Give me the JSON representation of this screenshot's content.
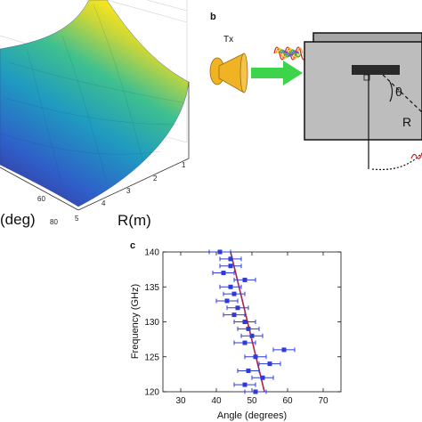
{
  "panels": {
    "a": {
      "axis_label_left": "(deg)",
      "axis_label_right": "R(m)",
      "left_ticks": [
        "60",
        "80"
      ],
      "right_ticks": [
        "1",
        "2",
        "3",
        "4",
        "5"
      ]
    },
    "b": {
      "letter": "b",
      "tx_label": "Tx",
      "theta_label": "θ",
      "r_label": "R",
      "colors": {
        "horn": "#f0b323",
        "arrow": "#3dd34a",
        "box_back": "#a6a6a6",
        "box_front": "#bdbdbd"
      }
    },
    "c": {
      "letter": "c"
    }
  },
  "chart_data": {
    "type": "scatter",
    "title": "",
    "xlabel": "Angle (degrees)",
    "ylabel": "Frequency (GHz)",
    "xlim": [
      25,
      75
    ],
    "ylim": [
      120,
      140
    ],
    "xticks": [
      30,
      40,
      50,
      60,
      70
    ],
    "yticks": [
      120,
      125,
      130,
      135,
      140
    ],
    "grid": false,
    "series": [
      {
        "marker": "square",
        "color": "#2f3bd6",
        "points": [
          {
            "y": 140,
            "x": 41,
            "err": 3
          },
          {
            "y": 139,
            "x": 44,
            "err": 3
          },
          {
            "y": 138,
            "x": 44,
            "err": 3
          },
          {
            "y": 137,
            "x": 42,
            "err": 3
          },
          {
            "y": 136,
            "x": 48,
            "err": 3
          },
          {
            "y": 135,
            "x": 44,
            "err": 3
          },
          {
            "y": 134,
            "x": 45,
            "err": 3
          },
          {
            "y": 133,
            "x": 43,
            "err": 3
          },
          {
            "y": 132,
            "x": 46,
            "err": 3
          },
          {
            "y": 131,
            "x": 45,
            "err": 3
          },
          {
            "y": 130,
            "x": 48,
            "err": 3
          },
          {
            "y": 129,
            "x": 49,
            "err": 3
          },
          {
            "y": 128,
            "x": 50,
            "err": 3
          },
          {
            "y": 127,
            "x": 48,
            "err": 3
          },
          {
            "y": 126,
            "x": 59,
            "err": 3
          },
          {
            "y": 125,
            "x": 51,
            "err": 3
          },
          {
            "y": 124,
            "x": 55,
            "err": 3
          },
          {
            "y": 123,
            "x": 49,
            "err": 3
          },
          {
            "y": 122,
            "x": 53,
            "err": 3
          },
          {
            "y": 121,
            "x": 48,
            "err": 3
          },
          {
            "y": 120,
            "x": 51,
            "err": 3
          }
        ]
      },
      {
        "kind": "fit-line",
        "color": "#b0224a",
        "line": [
          {
            "x": 44,
            "y": 140
          },
          {
            "x": 53.5,
            "y": 120
          }
        ]
      }
    ]
  }
}
